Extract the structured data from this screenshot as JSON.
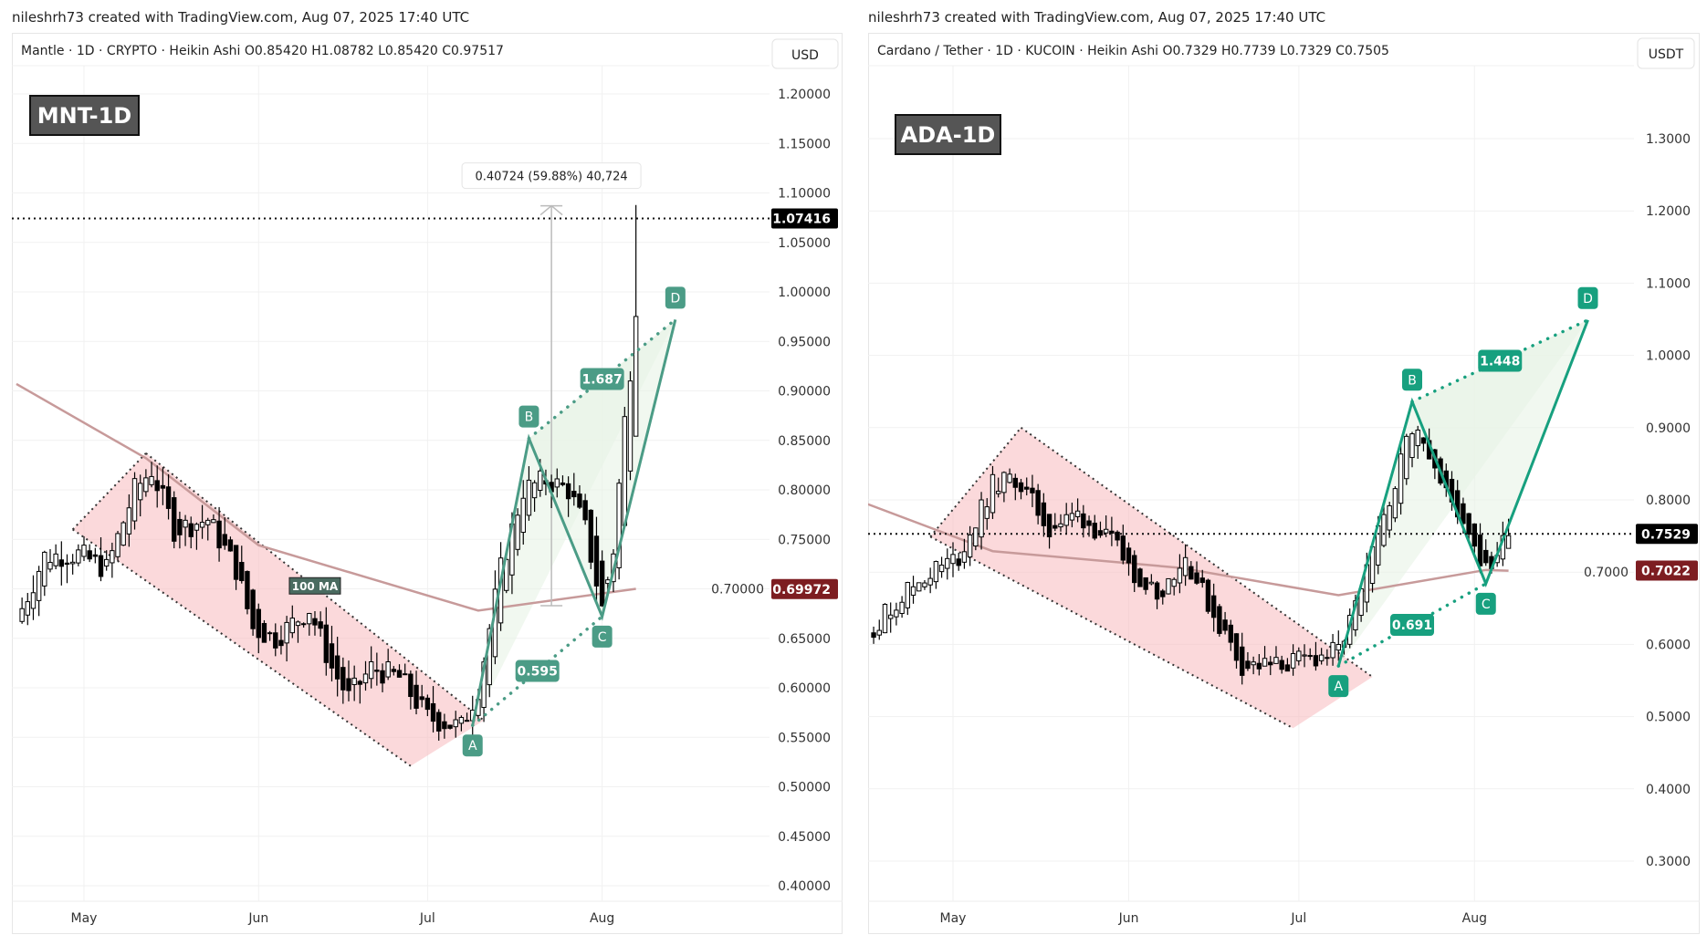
{
  "header": {
    "left": "nileshrh73 created with TradingView.com, Aug 07, 2025 17:40 UTC",
    "right": "nileshrh73 created with TradingView.com, Aug 07, 2025 17:40 UTC"
  },
  "chart_data": [
    {
      "type": "candlestick",
      "badge": "MNT-1D",
      "legend": "Mantle · 1D · CRYPTO · Heikin Ashi  O0.85420  H1.08782  L0.85420  C0.97517",
      "currency": "USD",
      "ylim": [
        0.38,
        1.23
      ],
      "yticks": [
        "1.20000",
        "1.15000",
        "1.10000",
        "1.05000",
        "1.00000",
        "0.95000",
        "0.90000",
        "0.85000",
        "0.80000",
        "0.75000",
        "0.70000",
        "0.65000",
        "0.60000",
        "0.55000",
        "0.50000",
        "0.45000",
        "0.40000"
      ],
      "xticks": [
        {
          "label": "May",
          "date": "2025-05-01"
        },
        {
          "label": "Jun",
          "date": "2025-06-01"
        },
        {
          "label": "Jul",
          "date": "2025-07-01"
        },
        {
          "label": "Aug",
          "date": "2025-08-01"
        }
      ],
      "price_path": [
        [
          "2025-04-19",
          0.667
        ],
        [
          "2025-04-24",
          0.733
        ],
        [
          "2025-04-30",
          0.735
        ],
        [
          "2025-05-05",
          0.72
        ],
        [
          "2025-05-10",
          0.8
        ],
        [
          "2025-05-13",
          0.82
        ],
        [
          "2025-05-17",
          0.76
        ],
        [
          "2025-05-23",
          0.77
        ],
        [
          "2025-05-28",
          0.72
        ],
        [
          "2025-05-31",
          0.66
        ],
        [
          "2025-06-04",
          0.65
        ],
        [
          "2025-06-10",
          0.68
        ],
        [
          "2025-06-14",
          0.62
        ],
        [
          "2025-06-17",
          0.59
        ],
        [
          "2025-06-21",
          0.62
        ],
        [
          "2025-06-26",
          0.61
        ],
        [
          "2025-07-01",
          0.57
        ],
        [
          "2025-07-07",
          0.56
        ],
        [
          "2025-07-10",
          0.6
        ],
        [
          "2025-07-14",
          0.72
        ],
        [
          "2025-07-18",
          0.8
        ],
        [
          "2025-07-22",
          0.81
        ],
        [
          "2025-07-26",
          0.8
        ],
        [
          "2025-07-29",
          0.76
        ],
        [
          "2025-08-01",
          0.68
        ],
        [
          "2025-08-03",
          0.74
        ],
        [
          "2025-08-05",
          0.87
        ],
        [
          "2025-08-07",
          0.975
        ]
      ],
      "last_candle": {
        "open": 0.8542,
        "high": 1.08782,
        "low": 0.8542,
        "close": 0.97517
      },
      "ma": {
        "label": "100 MA",
        "value": "0.69972",
        "color": "#c79a9a",
        "path": [
          [
            "2025-04-19",
            0.907
          ],
          [
            "2025-05-12",
            0.832
          ],
          [
            "2025-06-01",
            0.744
          ],
          [
            "2025-07-10",
            0.678
          ],
          [
            "2025-08-07",
            0.7
          ]
        ]
      },
      "current_price": "1.07416",
      "measure": {
        "label": "0.40724 (59.88%) 40,724",
        "date": "2025-07-23",
        "from": 0.683,
        "to": 1.087
      },
      "channel": {
        "color": "#f7b9be",
        "points": [
          [
            "2025-04-29",
            0.76
          ],
          [
            "2025-05-12",
            0.837
          ],
          [
            "2025-07-11",
            0.567
          ],
          [
            "2025-06-28",
            0.521
          ]
        ]
      },
      "pattern": {
        "color": "#4b9c86",
        "points": [
          {
            "label": "A",
            "date": "2025-07-09",
            "price": 0.562
          },
          {
            "label": "B",
            "date": "2025-07-19",
            "price": 0.852
          },
          {
            "label": "C",
            "date": "2025-08-01",
            "price": 0.672
          },
          {
            "label": "D",
            "date": "2025-08-14",
            "price": 0.972
          }
        ],
        "ratios": [
          "0.595",
          "1.687"
        ]
      }
    },
    {
      "type": "candlestick",
      "badge": "ADA-1D",
      "legend": "Cardano / Tether · 1D · KUCOIN · Heikin Ashi  O0.7329  H0.7739  L0.7329  C0.7505",
      "currency": "USDT",
      "ylim": [
        0.25,
        1.35
      ],
      "yticks": [
        "1.3000",
        "1.2000",
        "1.1000",
        "1.0000",
        "0.9000",
        "0.8000",
        "0.7000",
        "0.6000",
        "0.5000",
        "0.4000",
        "0.3000"
      ],
      "xticks": [
        {
          "label": "May",
          "date": "2025-05-01"
        },
        {
          "label": "Jun",
          "date": "2025-06-01"
        },
        {
          "label": "Jul",
          "date": "2025-07-01"
        },
        {
          "label": "Aug",
          "date": "2025-08-01"
        }
      ],
      "price_path": [
        [
          "2025-04-16",
          0.616
        ],
        [
          "2025-04-23",
          0.676
        ],
        [
          "2025-04-27",
          0.7
        ],
        [
          "2025-05-02",
          0.72
        ],
        [
          "2025-05-08",
          0.82
        ],
        [
          "2025-05-12",
          0.83
        ],
        [
          "2025-05-18",
          0.76
        ],
        [
          "2025-05-23",
          0.78
        ],
        [
          "2025-05-29",
          0.74
        ],
        [
          "2025-06-02",
          0.7
        ],
        [
          "2025-06-06",
          0.67
        ],
        [
          "2025-06-11",
          0.72
        ],
        [
          "2025-06-16",
          0.64
        ],
        [
          "2025-06-21",
          0.57
        ],
        [
          "2025-06-27",
          0.57
        ],
        [
          "2025-07-03",
          0.58
        ],
        [
          "2025-07-08",
          0.59
        ],
        [
          "2025-07-12",
          0.67
        ],
        [
          "2025-07-16",
          0.78
        ],
        [
          "2025-07-20",
          0.88
        ],
        [
          "2025-07-22",
          0.91
        ],
        [
          "2025-07-26",
          0.82
        ],
        [
          "2025-07-31",
          0.76
        ],
        [
          "2025-08-03",
          0.7
        ],
        [
          "2025-08-06",
          0.74
        ],
        [
          "2025-08-07",
          0.7505
        ]
      ],
      "last_candle": {
        "open": 0.7329,
        "high": 0.7739,
        "low": 0.7329,
        "close": 0.7505
      },
      "ma": {
        "value": "0.7022",
        "color": "#c79a9a",
        "path": [
          [
            "2025-04-16",
            0.794
          ],
          [
            "2025-05-08",
            0.729
          ],
          [
            "2025-06-10",
            0.706
          ],
          [
            "2025-07-08",
            0.668
          ],
          [
            "2025-08-03",
            0.703
          ],
          [
            "2025-08-07",
            0.702
          ]
        ]
      },
      "current_price": "0.7529",
      "channel": {
        "color": "#f7b9be",
        "points": [
          [
            "2025-04-27",
            0.749
          ],
          [
            "2025-05-13",
            0.9
          ],
          [
            "2025-07-14",
            0.555
          ],
          [
            "2025-06-30",
            0.484
          ]
        ]
      },
      "pattern": {
        "color": "#17a07f",
        "points": [
          {
            "label": "A",
            "date": "2025-07-08",
            "price": 0.57
          },
          {
            "label": "B",
            "date": "2025-07-21",
            "price": 0.936
          },
          {
            "label": "C",
            "date": "2025-08-03",
            "price": 0.684
          },
          {
            "label": "D",
            "date": "2025-08-21",
            "price": 1.049
          }
        ],
        "ratios": [
          "0.691",
          "1.448"
        ]
      }
    }
  ]
}
